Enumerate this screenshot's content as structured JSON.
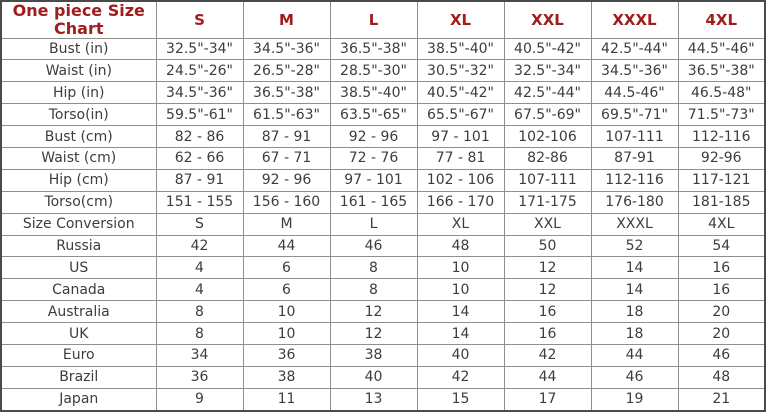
{
  "chart_data": {
    "type": "table",
    "title": "One piece Size Chart",
    "size_headers": [
      "S",
      "M",
      "L",
      "XL",
      "XXL",
      "XXXL",
      "4XL"
    ],
    "rows": [
      {
        "label": "Bust (in)",
        "values": [
          "32.5\"-34\"",
          "34.5\"-36\"",
          "36.5\"-38\"",
          "38.5\"-40\"",
          "40.5\"-42\"",
          "42.5\"-44\"",
          "44.5\"-46\""
        ]
      },
      {
        "label": "Waist (in)",
        "values": [
          "24.5\"-26\"",
          "26.5\"-28\"",
          "28.5\"-30\"",
          "30.5\"-32\"",
          "32.5\"-34\"",
          "34.5\"-36\"",
          "36.5\"-38\""
        ]
      },
      {
        "label": "Hip (in)",
        "values": [
          "34.5\"-36\"",
          "36.5\"-38\"",
          "38.5\"-40\"",
          "40.5\"-42\"",
          "42.5\"-44\"",
          "44.5-46\"",
          "46.5-48\""
        ]
      },
      {
        "label": "Torso(in)",
        "values": [
          "59.5\"-61\"",
          "61.5\"-63\"",
          "63.5\"-65\"",
          "65.5\"-67\"",
          "67.5\"-69\"",
          "69.5\"-71\"",
          "71.5\"-73\""
        ]
      },
      {
        "label": "Bust (cm)",
        "values": [
          "82 - 86",
          "87 - 91",
          "92 - 96",
          "97 - 101",
          "102-106",
          "107-111",
          "112-116"
        ]
      },
      {
        "label": "Waist (cm)",
        "values": [
          "62 - 66",
          "67 - 71",
          "72 - 76",
          "77 - 81",
          "82-86",
          "87-91",
          "92-96"
        ]
      },
      {
        "label": "Hip (cm)",
        "values": [
          "87 - 91",
          "92 - 96",
          "97 - 101",
          "102 - 106",
          "107-111",
          "112-116",
          "117-121"
        ]
      },
      {
        "label": "Torso(cm)",
        "values": [
          "151 - 155",
          "156 - 160",
          "161 - 165",
          "166 - 170",
          "171-175",
          "176-180",
          "181-185"
        ]
      },
      {
        "label": "Size Conversion",
        "values": [
          "S",
          "M",
          "L",
          "XL",
          "XXL",
          "XXXL",
          "4XL"
        ]
      },
      {
        "label": "Russia",
        "values": [
          "42",
          "44",
          "46",
          "48",
          "50",
          "52",
          "54"
        ]
      },
      {
        "label": "US",
        "values": [
          "4",
          "6",
          "8",
          "10",
          "12",
          "14",
          "16"
        ]
      },
      {
        "label": "Canada",
        "values": [
          "4",
          "6",
          "8",
          "10",
          "12",
          "14",
          "16"
        ]
      },
      {
        "label": "Australia",
        "values": [
          "8",
          "10",
          "12",
          "14",
          "16",
          "18",
          "20"
        ]
      },
      {
        "label": "UK",
        "values": [
          "8",
          "10",
          "12",
          "14",
          "16",
          "18",
          "20"
        ]
      },
      {
        "label": "Euro",
        "values": [
          "34",
          "36",
          "38",
          "40",
          "42",
          "44",
          "46"
        ]
      },
      {
        "label": "Brazil",
        "values": [
          "36",
          "38",
          "40",
          "42",
          "44",
          "46",
          "48"
        ]
      },
      {
        "label": "Japan",
        "values": [
          "9",
          "11",
          "13",
          "15",
          "17",
          "19",
          "21"
        ]
      }
    ]
  },
  "colors": {
    "header_text": "#a11c1c",
    "body_text": "#3d3d3d",
    "cell_border": "#8f8f8f",
    "outer_border": "#4a4a4a",
    "background": "#ffffff"
  }
}
